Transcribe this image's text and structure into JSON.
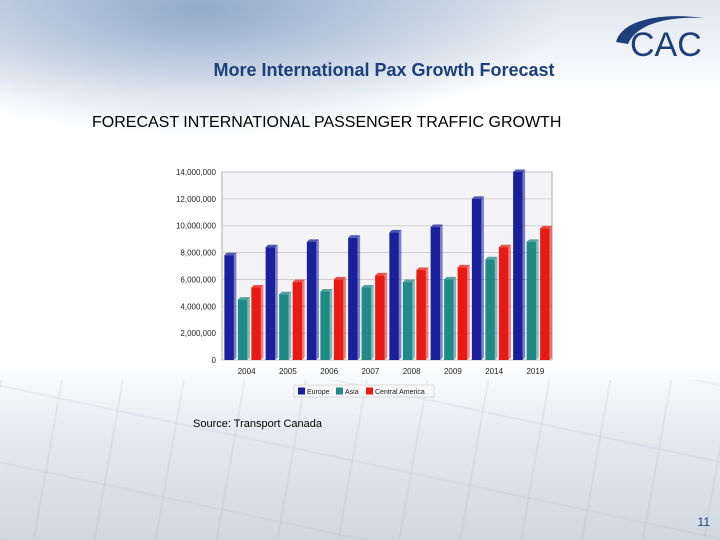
{
  "slide": {
    "title": "More International Pax Growth Forecast",
    "subtitle": "FORECAST INTERNATIONAL PASSENGER TRAFFIC GROWTH",
    "source": "Source: Transport Canada",
    "page_number": "11",
    "logo_text": "CAC"
  },
  "colors": {
    "title": "#1f3f7a",
    "europe": "#1a1f9c",
    "asia": "#1f8a86",
    "central_america": "#e81a14"
  },
  "chart_data": {
    "type": "bar",
    "title": "",
    "xlabel": "",
    "ylabel": "",
    "categories": [
      "2004",
      "2005",
      "2006",
      "2007",
      "2008",
      "2009",
      "2014",
      "2019"
    ],
    "series": [
      {
        "name": "Europe",
        "color": "#1a1f9c",
        "values": [
          7800000,
          8400000,
          8800000,
          9100000,
          9500000,
          9900000,
          12000000,
          14000000
        ]
      },
      {
        "name": "Asia",
        "color": "#1f8a86",
        "values": [
          4500000,
          4900000,
          5100000,
          5400000,
          5800000,
          6000000,
          7500000,
          8800000
        ]
      },
      {
        "name": "Central America",
        "color": "#e81a14",
        "values": [
          5400000,
          5800000,
          6000000,
          6300000,
          6700000,
          6900000,
          8400000,
          9800000
        ]
      }
    ],
    "yticks": [
      "0",
      "2,000,000",
      "4,000,000",
      "6,000,000",
      "8,000,000",
      "10,000,000",
      "12,000,000",
      "14,000,000"
    ],
    "ylim": [
      0,
      14000000
    ],
    "grid": true,
    "legend_position": "bottom"
  }
}
